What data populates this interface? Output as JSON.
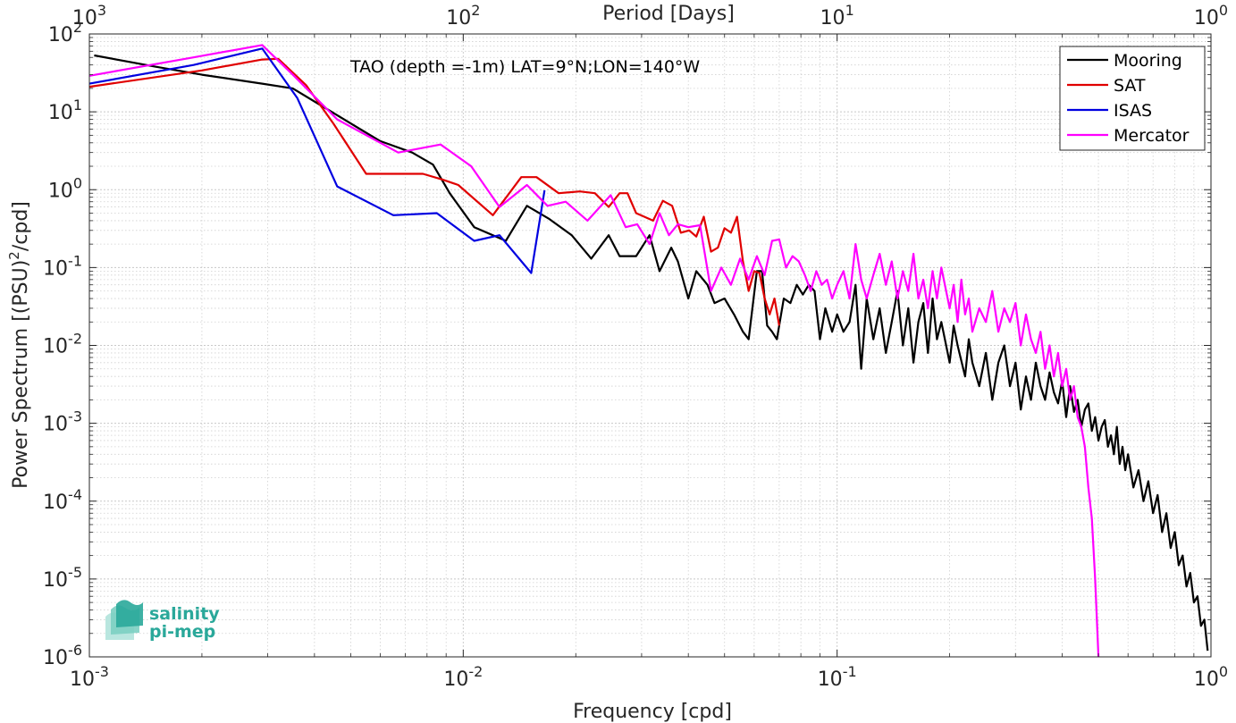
{
  "chart_data": {
    "type": "line",
    "title": "TAO (depth =-1m) LAT=9°N;LON=140°W",
    "xlabel": "Frequency [cpd]",
    "ylabel_main": "Power Spectrum [(PSU)",
    "ylabel_sup": "2",
    "ylabel_tail": "/cpd]",
    "top_xlabel": "Period [Days]",
    "x_scale": "log",
    "y_scale": "log",
    "xlim": [
      0.001,
      1
    ],
    "ylim": [
      1e-06,
      100
    ],
    "grid": true,
    "legend_position": "top-right",
    "x_ticks": [
      {
        "value": 0.001,
        "base": "10",
        "exp": "-3"
      },
      {
        "value": 0.01,
        "base": "10",
        "exp": "-2"
      },
      {
        "value": 0.1,
        "base": "10",
        "exp": "-1"
      },
      {
        "value": 1,
        "base": "10",
        "exp": "0"
      }
    ],
    "y_ticks": [
      {
        "value": 100,
        "base": "10",
        "exp": "2"
      },
      {
        "value": 10,
        "base": "10",
        "exp": "1"
      },
      {
        "value": 1,
        "base": "10",
        "exp": "0"
      },
      {
        "value": 0.1,
        "base": "10",
        "exp": "-1"
      },
      {
        "value": 0.01,
        "base": "10",
        "exp": "-2"
      },
      {
        "value": 0.001,
        "base": "10",
        "exp": "-3"
      },
      {
        "value": 0.0001,
        "base": "10",
        "exp": "-4"
      },
      {
        "value": 1e-05,
        "base": "10",
        "exp": "-5"
      },
      {
        "value": 1e-06,
        "base": "10",
        "exp": "-6"
      }
    ],
    "top_ticks": [
      {
        "value": 0.001,
        "base": "10",
        "exp": "3"
      },
      {
        "value": 0.01,
        "base": "10",
        "exp": "2"
      },
      {
        "value": 0.1,
        "base": "10",
        "exp": "1"
      },
      {
        "value": 1,
        "base": "10",
        "exp": "0"
      }
    ],
    "series": [
      {
        "name": "Mooring",
        "color": "#000000",
        "points": [
          [
            0.00103,
            53
          ],
          [
            0.0015,
            38
          ],
          [
            0.002,
            30
          ],
          [
            0.0029,
            23
          ],
          [
            0.0035,
            20
          ],
          [
            0.0043,
            11
          ],
          [
            0.0053,
            6
          ],
          [
            0.006,
            4.2
          ],
          [
            0.0073,
            3
          ],
          [
            0.0083,
            2.1
          ],
          [
            0.0092,
            0.9
          ],
          [
            0.0107,
            0.33
          ],
          [
            0.013,
            0.22
          ],
          [
            0.0148,
            0.62
          ],
          [
            0.017,
            0.42
          ],
          [
            0.0195,
            0.26
          ],
          [
            0.022,
            0.13
          ],
          [
            0.0245,
            0.26
          ],
          [
            0.0262,
            0.14
          ],
          [
            0.029,
            0.14
          ],
          [
            0.0315,
            0.26
          ],
          [
            0.0335,
            0.09
          ],
          [
            0.036,
            0.18
          ],
          [
            0.0375,
            0.12
          ],
          [
            0.04,
            0.04
          ],
          [
            0.042,
            0.09
          ],
          [
            0.045,
            0.06
          ],
          [
            0.047,
            0.035
          ],
          [
            0.05,
            0.04
          ],
          [
            0.053,
            0.025
          ],
          [
            0.056,
            0.015
          ],
          [
            0.058,
            0.012
          ],
          [
            0.061,
            0.09
          ],
          [
            0.063,
            0.09
          ],
          [
            0.065,
            0.018
          ],
          [
            0.067,
            0.015
          ],
          [
            0.069,
            0.012
          ],
          [
            0.072,
            0.04
          ],
          [
            0.075,
            0.035
          ],
          [
            0.078,
            0.06
          ],
          [
            0.081,
            0.045
          ],
          [
            0.084,
            0.06
          ],
          [
            0.087,
            0.05
          ],
          [
            0.09,
            0.012
          ],
          [
            0.093,
            0.03
          ],
          [
            0.097,
            0.015
          ],
          [
            0.1,
            0.025
          ],
          [
            0.104,
            0.015
          ],
          [
            0.108,
            0.02
          ],
          [
            0.112,
            0.06
          ],
          [
            0.116,
            0.005
          ],
          [
            0.12,
            0.04
          ],
          [
            0.125,
            0.012
          ],
          [
            0.13,
            0.03
          ],
          [
            0.135,
            0.008
          ],
          [
            0.14,
            0.02
          ],
          [
            0.145,
            0.05
          ],
          [
            0.15,
            0.01
          ],
          [
            0.155,
            0.03
          ],
          [
            0.16,
            0.006
          ],
          [
            0.165,
            0.02
          ],
          [
            0.17,
            0.035
          ],
          [
            0.175,
            0.008
          ],
          [
            0.18,
            0.04
          ],
          [
            0.185,
            0.012
          ],
          [
            0.19,
            0.02
          ],
          [
            0.2,
            0.006
          ],
          [
            0.205,
            0.018
          ],
          [
            0.21,
            0.01
          ],
          [
            0.22,
            0.004
          ],
          [
            0.225,
            0.012
          ],
          [
            0.23,
            0.006
          ],
          [
            0.24,
            0.003
          ],
          [
            0.25,
            0.008
          ],
          [
            0.26,
            0.002
          ],
          [
            0.27,
            0.006
          ],
          [
            0.28,
            0.01
          ],
          [
            0.29,
            0.003
          ],
          [
            0.3,
            0.006
          ],
          [
            0.31,
            0.0015
          ],
          [
            0.32,
            0.004
          ],
          [
            0.33,
            0.002
          ],
          [
            0.34,
            0.006
          ],
          [
            0.35,
            0.003
          ],
          [
            0.36,
            0.002
          ],
          [
            0.37,
            0.0045
          ],
          [
            0.38,
            0.0025
          ],
          [
            0.39,
            0.0018
          ],
          [
            0.4,
            0.0035
          ],
          [
            0.41,
            0.0012
          ],
          [
            0.42,
            0.003
          ],
          [
            0.43,
            0.0014
          ],
          [
            0.44,
            0.002
          ],
          [
            0.45,
            0.0009
          ],
          [
            0.46,
            0.0015
          ],
          [
            0.47,
            0.0018
          ],
          [
            0.48,
            0.0008
          ],
          [
            0.49,
            0.0012
          ],
          [
            0.5,
            0.0006
          ],
          [
            0.51,
            0.0009
          ],
          [
            0.52,
            0.0011
          ],
          [
            0.53,
            0.0005
          ],
          [
            0.54,
            0.0007
          ],
          [
            0.55,
            0.0004
          ],
          [
            0.56,
            0.0009
          ],
          [
            0.57,
            0.0003
          ],
          [
            0.58,
            0.0005
          ],
          [
            0.59,
            0.00025
          ],
          [
            0.6,
            0.0004
          ],
          [
            0.62,
            0.00015
          ],
          [
            0.64,
            0.00025
          ],
          [
            0.66,
            0.0001
          ],
          [
            0.68,
            0.00018
          ],
          [
            0.7,
            7e-05
          ],
          [
            0.72,
            0.00012
          ],
          [
            0.74,
            4e-05
          ],
          [
            0.76,
            7e-05
          ],
          [
            0.78,
            2.5e-05
          ],
          [
            0.8,
            4e-05
          ],
          [
            0.82,
            1.5e-05
          ],
          [
            0.84,
            2e-05
          ],
          [
            0.86,
            8e-06
          ],
          [
            0.88,
            1.2e-05
          ],
          [
            0.9,
            5e-06
          ],
          [
            0.92,
            6e-06
          ],
          [
            0.94,
            2.5e-06
          ],
          [
            0.96,
            3e-06
          ],
          [
            0.98,
            1.2e-06
          ]
        ]
      },
      {
        "name": "SAT",
        "color": "#e00000",
        "points": [
          [
            0.001,
            21
          ],
          [
            0.002,
            34
          ],
          [
            0.0029,
            47
          ],
          [
            0.0032,
            48
          ],
          [
            0.0038,
            22
          ],
          [
            0.0045,
            7
          ],
          [
            0.0055,
            1.6
          ],
          [
            0.0065,
            1.6
          ],
          [
            0.0078,
            1.6
          ],
          [
            0.0088,
            1.35
          ],
          [
            0.0097,
            1.15
          ],
          [
            0.012,
            0.47
          ],
          [
            0.0143,
            1.45
          ],
          [
            0.0157,
            1.45
          ],
          [
            0.018,
            0.9
          ],
          [
            0.0205,
            0.95
          ],
          [
            0.0225,
            0.9
          ],
          [
            0.0245,
            0.6
          ],
          [
            0.0262,
            0.9
          ],
          [
            0.0275,
            0.9
          ],
          [
            0.029,
            0.5
          ],
          [
            0.0305,
            0.45
          ],
          [
            0.0322,
            0.4
          ],
          [
            0.0342,
            0.72
          ],
          [
            0.0362,
            0.62
          ],
          [
            0.0382,
            0.28
          ],
          [
            0.0402,
            0.3
          ],
          [
            0.042,
            0.25
          ],
          [
            0.044,
            0.45
          ],
          [
            0.046,
            0.16
          ],
          [
            0.048,
            0.18
          ],
          [
            0.05,
            0.32
          ],
          [
            0.052,
            0.28
          ],
          [
            0.054,
            0.45
          ],
          [
            0.056,
            0.12
          ],
          [
            0.058,
            0.05
          ],
          [
            0.06,
            0.09
          ],
          [
            0.062,
            0.085
          ],
          [
            0.064,
            0.04
          ],
          [
            0.066,
            0.025
          ],
          [
            0.068,
            0.04
          ],
          [
            0.07,
            0.018
          ]
        ]
      },
      {
        "name": "ISAS",
        "color": "#0000e0",
        "points": [
          [
            0.001,
            23
          ],
          [
            0.0019,
            40
          ],
          [
            0.0029,
            65
          ],
          [
            0.0036,
            15
          ],
          [
            0.0046,
            1.1
          ],
          [
            0.0065,
            0.47
          ],
          [
            0.0085,
            0.5
          ],
          [
            0.0107,
            0.22
          ],
          [
            0.0125,
            0.26
          ],
          [
            0.0152,
            0.085
          ],
          [
            0.0165,
            0.98
          ]
        ]
      },
      {
        "name": "Mercator",
        "color": "#ff00ff",
        "points": [
          [
            0.001,
            29
          ],
          [
            0.0019,
            50
          ],
          [
            0.0029,
            72
          ],
          [
            0.0035,
            30
          ],
          [
            0.0046,
            8
          ],
          [
            0.0067,
            3
          ],
          [
            0.0087,
            3.8
          ],
          [
            0.0105,
            2
          ],
          [
            0.0125,
            0.6
          ],
          [
            0.0148,
            1.15
          ],
          [
            0.0168,
            0.62
          ],
          [
            0.0188,
            0.7
          ],
          [
            0.0215,
            0.4
          ],
          [
            0.0248,
            0.85
          ],
          [
            0.0272,
            0.33
          ],
          [
            0.0292,
            0.36
          ],
          [
            0.0315,
            0.2
          ],
          [
            0.0335,
            0.5
          ],
          [
            0.0355,
            0.26
          ],
          [
            0.0375,
            0.36
          ],
          [
            0.04,
            0.33
          ],
          [
            0.043,
            0.35
          ],
          [
            0.046,
            0.05
          ],
          [
            0.049,
            0.1
          ],
          [
            0.052,
            0.06
          ],
          [
            0.055,
            0.13
          ],
          [
            0.058,
            0.07
          ],
          [
            0.061,
            0.14
          ],
          [
            0.064,
            0.08
          ],
          [
            0.067,
            0.22
          ],
          [
            0.07,
            0.23
          ],
          [
            0.073,
            0.1
          ],
          [
            0.076,
            0.14
          ],
          [
            0.079,
            0.12
          ],
          [
            0.082,
            0.08
          ],
          [
            0.085,
            0.05
          ],
          [
            0.088,
            0.09
          ],
          [
            0.091,
            0.06
          ],
          [
            0.094,
            0.07
          ],
          [
            0.097,
            0.04
          ],
          [
            0.1,
            0.06
          ],
          [
            0.104,
            0.09
          ],
          [
            0.108,
            0.04
          ],
          [
            0.112,
            0.2
          ],
          [
            0.116,
            0.07
          ],
          [
            0.12,
            0.04
          ],
          [
            0.125,
            0.08
          ],
          [
            0.13,
            0.15
          ],
          [
            0.135,
            0.06
          ],
          [
            0.14,
            0.12
          ],
          [
            0.145,
            0.04
          ],
          [
            0.15,
            0.09
          ],
          [
            0.155,
            0.05
          ],
          [
            0.16,
            0.15
          ],
          [
            0.165,
            0.04
          ],
          [
            0.17,
            0.07
          ],
          [
            0.175,
            0.03
          ],
          [
            0.18,
            0.09
          ],
          [
            0.185,
            0.04
          ],
          [
            0.19,
            0.1
          ],
          [
            0.2,
            0.03
          ],
          [
            0.205,
            0.06
          ],
          [
            0.21,
            0.02
          ],
          [
            0.215,
            0.07
          ],
          [
            0.22,
            0.025
          ],
          [
            0.225,
            0.04
          ],
          [
            0.23,
            0.015
          ],
          [
            0.24,
            0.03
          ],
          [
            0.25,
            0.02
          ],
          [
            0.26,
            0.05
          ],
          [
            0.27,
            0.015
          ],
          [
            0.28,
            0.03
          ],
          [
            0.29,
            0.02
          ],
          [
            0.3,
            0.035
          ],
          [
            0.31,
            0.01
          ],
          [
            0.32,
            0.025
          ],
          [
            0.33,
            0.012
          ],
          [
            0.34,
            0.008
          ],
          [
            0.35,
            0.015
          ],
          [
            0.36,
            0.005
          ],
          [
            0.37,
            0.01
          ],
          [
            0.38,
            0.004
          ],
          [
            0.39,
            0.008
          ],
          [
            0.4,
            0.003
          ],
          [
            0.41,
            0.005
          ],
          [
            0.42,
            0.002
          ],
          [
            0.43,
            0.003
          ],
          [
            0.44,
            0.0012
          ],
          [
            0.45,
            0.0009
          ],
          [
            0.46,
            0.0005
          ],
          [
            0.47,
            0.00015
          ],
          [
            0.48,
            6e-05
          ],
          [
            0.49,
            1e-05
          ],
          [
            0.5,
            1e-06
          ]
        ]
      }
    ]
  },
  "legend": [
    {
      "label": "Mooring",
      "color": "#000000"
    },
    {
      "label": "SAT",
      "color": "#e00000"
    },
    {
      "label": "ISAS",
      "color": "#0000e0"
    },
    {
      "label": "Mercator",
      "color": "#ff00ff"
    }
  ],
  "logo": {
    "line1": "salinity",
    "line2": "pi-mep",
    "color": "#2aa89a"
  }
}
